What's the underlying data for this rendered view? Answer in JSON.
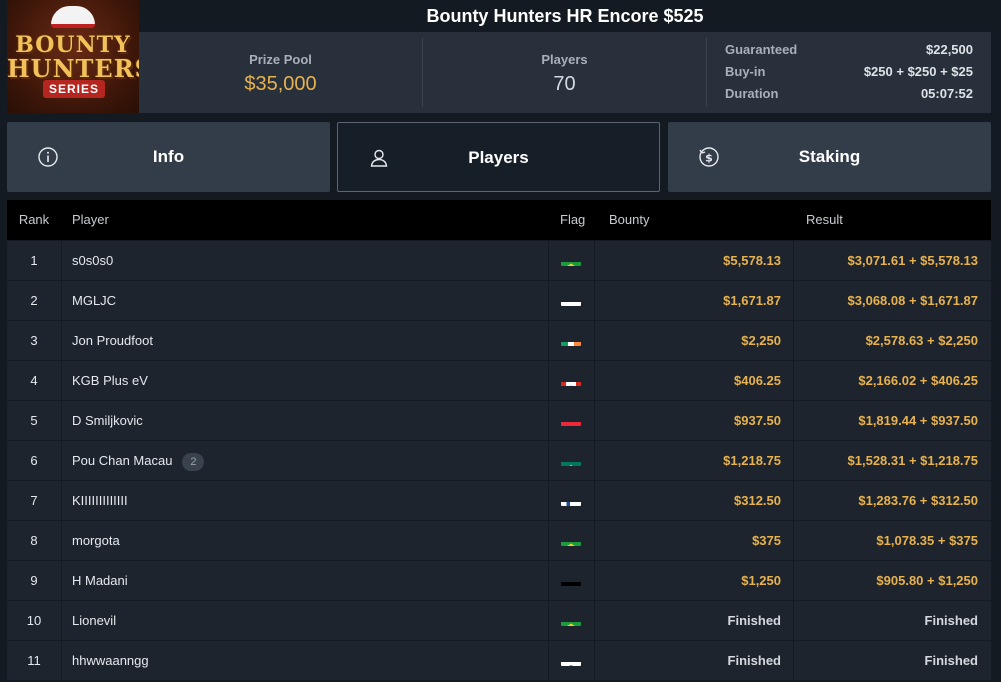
{
  "header": {
    "title": "Bounty Hunters HR Encore $525",
    "logo_text": [
      "BOUNTY",
      "HUNTERS",
      "SERIES"
    ],
    "prize_pool_label": "Prize Pool",
    "prize_pool_value": "$35,000",
    "players_label": "Players",
    "players_value": "70",
    "details": [
      {
        "label": "Guaranteed",
        "value": "$22,500"
      },
      {
        "label": "Buy-in",
        "value": "$250 + $250 + $25"
      },
      {
        "label": "Duration",
        "value": "05:07:52"
      }
    ]
  },
  "tabs": [
    {
      "label": "Info",
      "icon": "info-icon"
    },
    {
      "label": "Players",
      "icon": "user-icon",
      "active": true
    },
    {
      "label": "Staking",
      "icon": "coin-dollar-icon"
    }
  ],
  "table": {
    "columns": [
      "Rank",
      "Player",
      "Flag",
      "Bounty",
      "Result"
    ],
    "rows": [
      {
        "rank": "1",
        "player": "s0s0s0",
        "flag": "brazil",
        "bounty": "$5,578.13",
        "result": "$3,071.61 + $5,578.13"
      },
      {
        "rank": "2",
        "player": "MGLJC",
        "flag": "cyprus",
        "bounty": "$1,671.87",
        "result": "$3,068.08 + $1,671.87"
      },
      {
        "rank": "3",
        "player": "Jon Proudfoot",
        "flag": "ireland",
        "bounty": "$2,250",
        "result": "$2,578.63 + $2,250"
      },
      {
        "rank": "4",
        "player": "KGB Plus eV",
        "flag": "canada",
        "bounty": "$406.25",
        "result": "$2,166.02 + $406.25"
      },
      {
        "rank": "5",
        "player": "D Smiljkovic",
        "flag": "austria",
        "bounty": "$937.50",
        "result": "$1,819.44 + $937.50"
      },
      {
        "rank": "6",
        "player": "Pou Chan Macau",
        "badge": "2",
        "flag": "macau",
        "bounty": "$1,218.75",
        "result": "$1,528.31 + $1,218.75"
      },
      {
        "rank": "7",
        "player": "KIIIIIIIIIIIII",
        "flag": "finland",
        "bounty": "$312.50",
        "result": "$1,283.76 + $312.50"
      },
      {
        "rank": "8",
        "player": "morgota",
        "flag": "brazil",
        "bounty": "$375",
        "result": "$1,078.35 + $375"
      },
      {
        "rank": "9",
        "player": "H Madani",
        "flag": "germany",
        "bounty": "$1,250",
        "result": "$905.80 + $1,250"
      },
      {
        "rank": "10",
        "player": "Lionevil",
        "flag": "brazil",
        "bounty": "Finished",
        "result": "Finished"
      },
      {
        "rank": "11",
        "player": "hhwwaanngg",
        "flag": "japan",
        "bounty": "Finished",
        "result": "Finished"
      }
    ]
  },
  "colors": {
    "accent_gold": "#e8b24e",
    "background": "#141a21",
    "panel": "#28303b",
    "tab": "#333d49"
  }
}
